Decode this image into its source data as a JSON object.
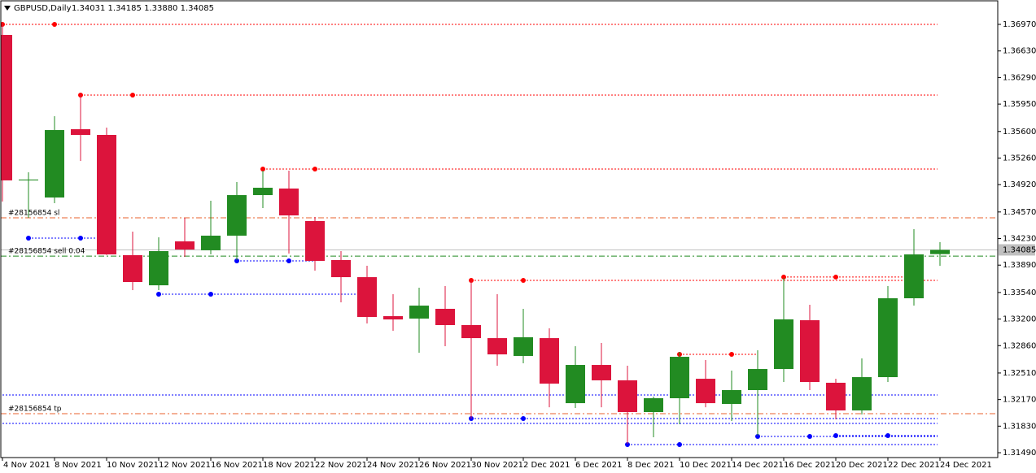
{
  "header": {
    "symbol": "GBPUSD,Daily",
    "quote": "1.34031 1.34185 1.33880 1.34085"
  },
  "chart_data": {
    "type": "candlestick",
    "categories": [
      "4 Nov 2021",
      null,
      "8 Nov 2021",
      null,
      "10 Nov 2021",
      null,
      "12 Nov 2021",
      null,
      "16 Nov 2021",
      null,
      "18 Nov 2021",
      null,
      "22 Nov 2021",
      null,
      "24 Nov 2021",
      null,
      "26 Nov 2021",
      null,
      "30 Nov 2021",
      null,
      "2 Dec 2021",
      null,
      "6 Dec 2021",
      null,
      "8 Dec 2021",
      null,
      "10 Dec 2021",
      null,
      "14 Dec 2021",
      null,
      "16 Dec 2021",
      null,
      "20 Dec 2021",
      null,
      "22 Dec 2021",
      null,
      "24 Dec 2021"
    ],
    "open": [
      1.36835,
      1.34974,
      1.34755,
      1.35629,
      1.35556,
      1.34017,
      1.33632,
      1.34194,
      1.3408,
      1.34267,
      1.34786,
      1.3487,
      1.34454,
      1.33955,
      1.33736,
      1.33237,
      1.33206,
      1.33331,
      1.33123,
      1.32956,
      1.32728,
      1.32956,
      1.32124,
      1.32613,
      1.32416,
      1.3201,
      1.32187,
      1.32436,
      1.32114,
      1.32291,
      1.32561,
      1.33185,
      1.32385,
      1.32031,
      1.32457,
      1.33466,
      1.34031
    ],
    "high": [
      1.36991,
      1.35078,
      1.35795,
      1.36086,
      1.3565,
      1.34319,
      1.34246,
      1.34495,
      1.34714,
      1.34953,
      1.35098,
      1.35098,
      1.34506,
      1.34069,
      1.33882,
      1.33518,
      1.33601,
      1.33622,
      1.33695,
      1.33518,
      1.33331,
      1.33081,
      1.32852,
      1.32894,
      1.32603,
      1.32208,
      1.3278,
      1.32676,
      1.3254,
      1.32801,
      1.33726,
      1.33383,
      1.32436,
      1.32696,
      1.33622,
      1.3435,
      1.34185
    ],
    "low": [
      1.34703,
      1.34495,
      1.34682,
      1.35223,
      1.3402,
      1.3357,
      1.3357,
      1.33996,
      1.34027,
      1.33955,
      1.3462,
      1.34038,
      1.33819,
      1.33414,
      1.33143,
      1.3305,
      1.32769,
      1.32852,
      1.31927,
      1.32603,
      1.32634,
      1.32072,
      1.32062,
      1.32072,
      1.31605,
      1.31688,
      1.31854,
      1.32072,
      1.31896,
      1.31709,
      1.32395,
      1.32291,
      1.31917,
      1.31979,
      1.32395,
      1.33372,
      1.3388
    ],
    "close": [
      1.34974,
      1.34985,
      1.35618,
      1.35556,
      1.34027,
      1.33674,
      1.34069,
      1.3409,
      1.34267,
      1.34786,
      1.3488,
      1.34526,
      1.33944,
      1.33736,
      1.33227,
      1.33195,
      1.33372,
      1.33123,
      1.32956,
      1.32748,
      1.32967,
      1.32374,
      1.32613,
      1.32416,
      1.3201,
      1.32187,
      1.32717,
      1.32124,
      1.32291,
      1.32561,
      1.33196,
      1.32395,
      1.32031,
      1.32457,
      1.33466,
      1.34027,
      1.34085
    ],
    "up_color": "#228b22",
    "down_color": "#dc143c",
    "ylim": [
      1.31428,
      1.37282
    ],
    "yticks": [
      {
        "value": 1.3697,
        "label": "1.36970"
      },
      {
        "value": 1.3663,
        "label": "1.36630"
      },
      {
        "value": 1.3629,
        "label": "1.36290"
      },
      {
        "value": 1.3595,
        "label": "1.35950"
      },
      {
        "value": 1.356,
        "label": "1.35600"
      },
      {
        "value": 1.3526,
        "label": "1.35260"
      },
      {
        "value": 1.3492,
        "label": "1.34920"
      },
      {
        "value": 1.3457,
        "label": "1.34570"
      },
      {
        "value": 1.3423,
        "label": "1.34230"
      },
      {
        "value": 1.3389,
        "label": "1.33890"
      },
      {
        "value": 1.3354,
        "label": "1.33540"
      },
      {
        "value": 1.332,
        "label": "1.33200"
      },
      {
        "value": 1.3286,
        "label": "1.32860"
      },
      {
        "value": 1.3251,
        "label": "1.32510"
      },
      {
        "value": 1.3217,
        "label": "1.32170"
      },
      {
        "value": 1.3183,
        "label": "1.31830"
      },
      {
        "value": 1.3149,
        "label": "1.31490"
      }
    ],
    "current_price": {
      "value": 1.34085,
      "label": "1.34085",
      "color": "#c0c0c0"
    },
    "fractal_levels": [
      {
        "value": 1.3697,
        "from": 0,
        "to": 36,
        "color": "#ff0000"
      },
      {
        "value": 1.36065,
        "from": 3,
        "to": 36,
        "color": "#ff0000"
      },
      {
        "value": 1.35119,
        "from": 10,
        "to": 36,
        "color": "#ff0000"
      },
      {
        "value": 1.33695,
        "from": 18,
        "to": 36,
        "color": "#ff0000"
      },
      {
        "value": 1.33737,
        "from": 30,
        "to": 35,
        "color": "#ff0000"
      },
      {
        "value": 1.32748,
        "from": 26,
        "to": 29,
        "color": "#ff0000"
      },
      {
        "value": 1.34235,
        "from": 1,
        "to": 4,
        "color": "#0000ff"
      },
      {
        "value": 1.33944,
        "from": 9,
        "to": 12,
        "color": "#0000ff"
      },
      {
        "value": 1.33518,
        "from": 6,
        "to": 14,
        "color": "#0000ff"
      },
      {
        "value": 1.31927,
        "from": 18,
        "to": 36,
        "color": "#0000ff"
      },
      {
        "value": 1.31594,
        "from": 24,
        "to": 36,
        "color": "#0000ff"
      },
      {
        "value": 1.31698,
        "from": 29,
        "to": 36,
        "color": "#0000ff"
      },
      {
        "value": 1.31709,
        "from": 32,
        "to": 36,
        "color": "#0000ff"
      },
      {
        "value": 1.32229,
        "from": -4,
        "to": 36,
        "color": "#0000ff"
      },
      {
        "value": 1.31865,
        "from": -4,
        "to": 36,
        "color": "#0000ff"
      }
    ],
    "trade_lines": [
      {
        "label": "#28156854 sl",
        "value": 1.34495,
        "color": "#e8602c"
      },
      {
        "label": "#28156854 sell 0.04",
        "value": 1.34006,
        "color": "#228b22"
      },
      {
        "label": "#28156854 tp",
        "value": 1.3199,
        "color": "#e8602c"
      }
    ]
  }
}
